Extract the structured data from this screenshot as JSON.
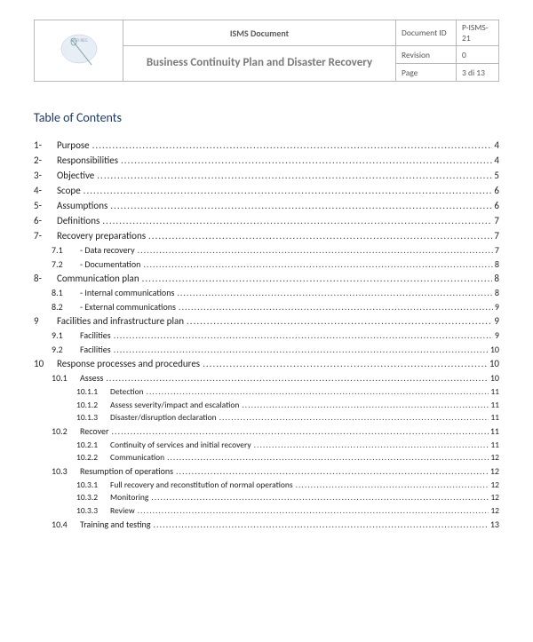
{
  "header": {
    "isms": "ISMS Document",
    "title": "Business Continuity Plan and Disaster Recovery",
    "docid_label": "Document ID",
    "docid_value": "P-ISMS-21",
    "rev_label": "Revision",
    "rev_value": "0",
    "page_label": "Page",
    "page_value": "3 di 13",
    "logo_text": "EASY REG"
  },
  "toc_title": "Table of Contents",
  "toc": [
    {
      "level": 1,
      "num": "1-",
      "label": "Purpose",
      "page": "4"
    },
    {
      "level": 1,
      "num": "2-",
      "label": "Responsibilities",
      "page": "4"
    },
    {
      "level": 1,
      "num": "3-",
      "label": "Objective",
      "page": "5"
    },
    {
      "level": 1,
      "num": "4-",
      "label": "Scope",
      "page": "6"
    },
    {
      "level": 1,
      "num": "5-",
      "label": "Assumptions",
      "page": "6"
    },
    {
      "level": 1,
      "num": "6-",
      "label": "Definitions",
      "page": "7"
    },
    {
      "level": 1,
      "num": "7-",
      "label": "Recovery preparations",
      "page": "7"
    },
    {
      "level": 2,
      "num": "7.1",
      "label": "- Data recovery",
      "page": "7"
    },
    {
      "level": 2,
      "num": "7.2",
      "label": "- Documentation",
      "page": "8"
    },
    {
      "level": 1,
      "num": "8-",
      "label": "Communication plan",
      "page": "8"
    },
    {
      "level": 2,
      "num": "8.1",
      "label": "- Internal communications",
      "page": "8"
    },
    {
      "level": 2,
      "num": "8.2",
      "label": "- External communications",
      "page": "9"
    },
    {
      "level": 1,
      "num": "9",
      "label": "Facilities and infrastructure plan",
      "page": "9"
    },
    {
      "level": 2,
      "num": "9.1",
      "label": "Facilities",
      "page": "9"
    },
    {
      "level": 2,
      "num": "9.2",
      "label": "Facilities",
      "page": "10"
    },
    {
      "level": 1,
      "num": "10",
      "label": "Response processes and procedures",
      "page": "10"
    },
    {
      "level": 2,
      "num": "10.1",
      "label": "Assess",
      "page": "10"
    },
    {
      "level": 3,
      "num": "10.1.1",
      "label": "Detection",
      "page": "11"
    },
    {
      "level": 3,
      "num": "10.1.2",
      "label": "Assess severity/impact and escalation",
      "page": "11"
    },
    {
      "level": 3,
      "num": "10.1.3",
      "label": "Disaster/disruption declaration",
      "page": "11"
    },
    {
      "level": 2,
      "num": "10.2",
      "label": "Recover",
      "page": "11"
    },
    {
      "level": 3,
      "num": "10.2.1",
      "label": "Continuity of services and initial recovery",
      "page": "11"
    },
    {
      "level": 3,
      "num": "10.2.2",
      "label": "Communication",
      "page": "12"
    },
    {
      "level": 2,
      "num": "10.3",
      "label": "Resumption of operations",
      "page": "12"
    },
    {
      "level": 3,
      "num": "10.3.1",
      "label": "Full recovery and reconstitution of normal operations",
      "page": "12"
    },
    {
      "level": 3,
      "num": "10.3.2",
      "label": "Monitoring",
      "page": "12"
    },
    {
      "level": 3,
      "num": "10.3.3",
      "label": "Review",
      "page": "12"
    },
    {
      "level": 2,
      "num": "10.4",
      "label": "Training and testing",
      "page": "13"
    }
  ]
}
